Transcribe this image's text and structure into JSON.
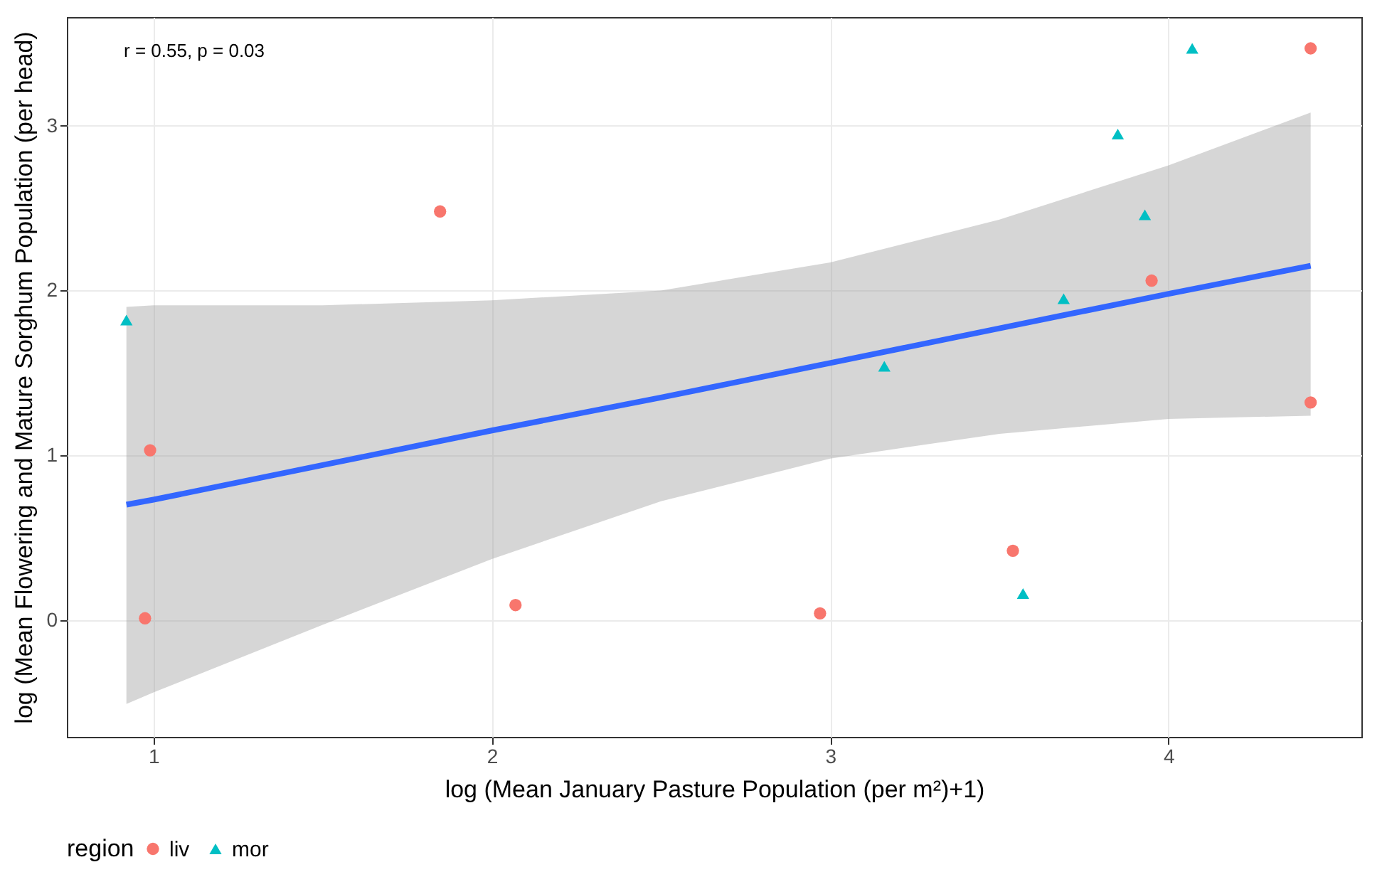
{
  "chart_data": {
    "type": "scatter",
    "xlabel": "log (Mean January Pasture Population (per m²)+1)",
    "ylabel": "log (Mean Flowering and Mature Sorghum Population (per head)",
    "legend_title": "region",
    "legend": "bottom",
    "grid": true,
    "xlim": [
      0.744,
      4.57
    ],
    "ylim": [
      -0.71,
      3.66
    ],
    "xticks": [
      1,
      2,
      3,
      4
    ],
    "yticks": [
      0,
      1,
      2,
      3
    ],
    "annotations": [
      "r = 0.55, p = 0.03"
    ],
    "series": [
      {
        "type": "line",
        "color": "#3366ff",
        "marker": "none",
        "x": [
          0.92,
          1,
          1.5,
          2,
          2.5,
          3,
          3.5,
          4,
          4.42
        ],
        "values": [
          0.7,
          0.73,
          0.94,
          1.15,
          1.35,
          1.56,
          1.77,
          1.98,
          2.15
        ],
        "lower": [
          -0.51,
          -0.44,
          -0.03,
          0.37,
          0.72,
          0.98,
          1.13,
          1.22,
          1.24
        ],
        "upper": [
          1.9,
          1.91,
          1.91,
          1.94,
          2.0,
          2.17,
          2.43,
          2.76,
          3.08
        ]
      },
      {
        "name": "liv",
        "color": "#f8766d",
        "marker": "circle",
        "x": [
          0.99,
          0.975,
          1.847,
          2.07,
          2.97,
          3.54,
          3.95,
          4.42,
          4.42
        ],
        "values": [
          1.03,
          0.01,
          2.48,
          0.09,
          0.04,
          0.42,
          2.06,
          3.47,
          1.32
        ]
      },
      {
        "name": "mor",
        "color": "#00bfc4",
        "marker": "triangle",
        "x": [
          0.92,
          3.16,
          3.57,
          3.69,
          3.85,
          3.93,
          4.07
        ],
        "values": [
          1.82,
          1.54,
          0.16,
          1.95,
          2.95,
          2.46,
          3.47
        ]
      }
    ]
  }
}
